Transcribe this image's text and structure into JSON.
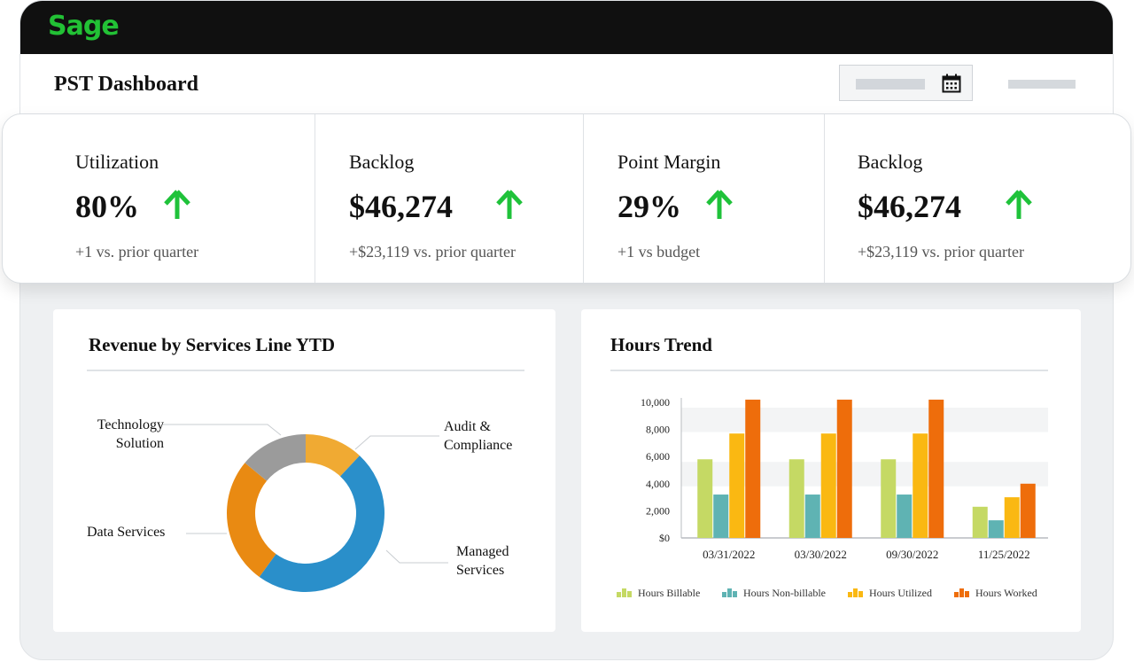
{
  "app": {
    "logo": "Sage"
  },
  "header": {
    "title": "PST Dashboard"
  },
  "kpis": [
    {
      "label": "Utilization",
      "value": "80%",
      "note": "+1 vs. prior quarter",
      "trend": "up"
    },
    {
      "label": "Backlog",
      "value": "$46,274",
      "note": "+$23,119 vs. prior quarter",
      "trend": "up"
    },
    {
      "label": "Point Margin",
      "value": "29%",
      "note": "+1 vs budget",
      "trend": "up"
    },
    {
      "label": "Backlog",
      "value": "$46,274",
      "note": "+$23,119 vs. prior quarter",
      "trend": "up"
    }
  ],
  "colors": {
    "up_arrow": "#1fc23a",
    "brand": "#22c135"
  },
  "revenue_panel": {
    "title": "Revenue by Services Line YTD",
    "labels": {
      "technology": [
        "Technology",
        "Solution"
      ],
      "audit": [
        "Audit &",
        "Compliance"
      ],
      "data": "Data Services",
      "managed": [
        "Managed",
        "Services"
      ]
    }
  },
  "hours_panel": {
    "title": "Hours Trend"
  },
  "chart_data": [
    {
      "type": "pie",
      "title": "Revenue by Services Line YTD",
      "categories": [
        "Audit & Compliance",
        "Managed Services",
        "Data Services",
        "Technology Solution"
      ],
      "values": [
        12,
        48,
        26,
        14
      ],
      "colors": [
        "#f0aa33",
        "#2a8fca",
        "#e98a12",
        "#9b9b9b"
      ],
      "donut": true
    },
    {
      "type": "bar",
      "title": "Hours Trend",
      "categories": [
        "03/31/2022",
        "03/30/2022",
        "09/30/2022",
        "11/25/2022"
      ],
      "series": [
        {
          "name": "Hours Billable",
          "color": "#c5d964",
          "values": [
            5800,
            5800,
            5800,
            2300
          ]
        },
        {
          "name": "Hours Non-billable",
          "color": "#5fb3b3",
          "values": [
            3200,
            3200,
            3200,
            1300
          ]
        },
        {
          "name": "Hours Utilized",
          "color": "#fab812",
          "values": [
            7700,
            7700,
            7700,
            3000
          ]
        },
        {
          "name": "Hours Worked",
          "color": "#ee6d0b",
          "values": [
            10200,
            10200,
            10200,
            4000
          ]
        }
      ],
      "yticks": [
        "$0",
        "2,000",
        "4,000",
        "6,000",
        "8,000",
        "10,000"
      ],
      "ylim": [
        0,
        10000
      ],
      "legend": "bottom"
    }
  ]
}
